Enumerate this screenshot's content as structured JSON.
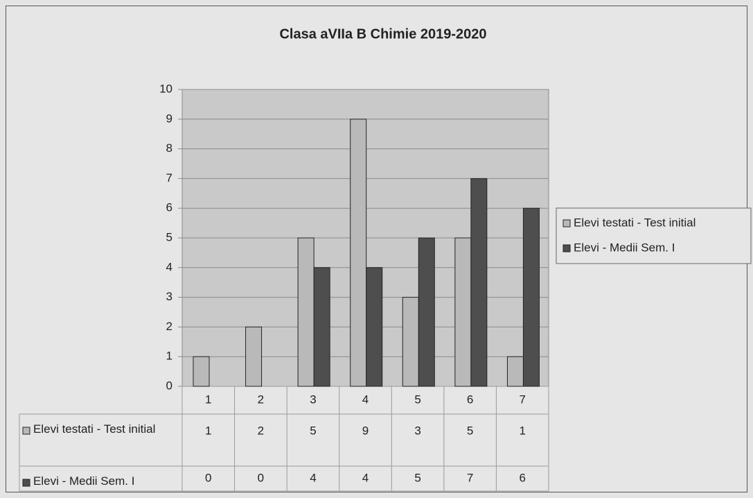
{
  "chart_data": {
    "type": "bar",
    "title": "Clasa aVIIa  B Chimie 2019-2020",
    "categories": [
      "1",
      "2",
      "3",
      "4",
      "5",
      "6",
      "7"
    ],
    "series": [
      {
        "name": "Elevi testati - Test initial",
        "color": "#b9b9b9",
        "values": [
          1,
          2,
          5,
          9,
          3,
          5,
          1
        ]
      },
      {
        "name": "Elevi - Medii Sem. I",
        "color": "#4e4e4e",
        "values": [
          0,
          0,
          4,
          4,
          5,
          7,
          6
        ]
      }
    ],
    "ylim": [
      0,
      10
    ],
    "yticks": [
      0,
      1,
      2,
      3,
      4,
      5,
      6,
      7,
      8,
      9,
      10
    ],
    "grid": true,
    "legend": "right"
  }
}
